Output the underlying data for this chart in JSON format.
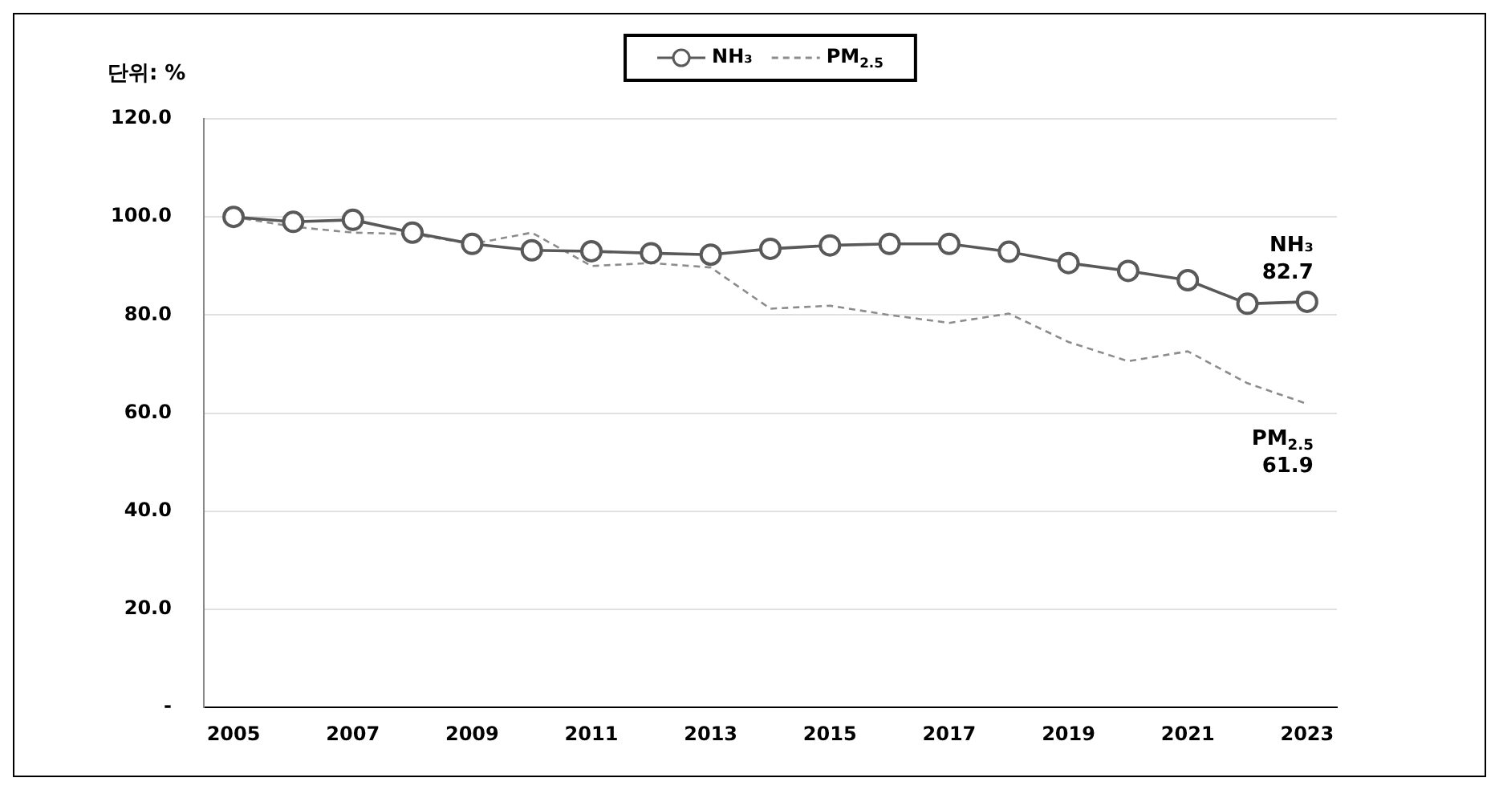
{
  "chart_data": {
    "type": "line",
    "ylabel": "단위: %",
    "categories": [
      "2005",
      null,
      "2007",
      null,
      "2009",
      null,
      "2011",
      null,
      "2013",
      null,
      "2015",
      null,
      "2017",
      null,
      "2019",
      null,
      "2021",
      null,
      "2023"
    ],
    "series": [
      {
        "name": "NH₃",
        "color": "#595959",
        "marker": "circle",
        "line_style": "solid",
        "values": [
          100,
          99,
          99.4,
          96.8,
          94.5,
          93.2,
          93,
          92.6,
          92.3,
          93.5,
          94.2,
          94.5,
          94.5,
          92.9,
          90.6,
          89,
          87.1,
          82.3,
          82.7
        ]
      },
      {
        "name": "PM$_{2.5}$",
        "color": "#8c8c8c",
        "marker": "none",
        "line_style": "dashed",
        "values": [
          100,
          98,
          96.8,
          96.5,
          94.5,
          96.8,
          90,
          90.6,
          89.7,
          81.3,
          81.9,
          80,
          78.4,
          80.3,
          74.5,
          70.6,
          72.6,
          66.1,
          61.9
        ]
      }
    ],
    "ylim": [
      0,
      120
    ],
    "yticks": [
      {
        "value": 0,
        "label": "-"
      },
      {
        "value": 20,
        "label": "20.0"
      },
      {
        "value": 40,
        "label": "40.0"
      },
      {
        "value": 60,
        "label": "60.0"
      },
      {
        "value": 80,
        "label": "80.0"
      },
      {
        "value": 100,
        "label": "100.0"
      },
      {
        "value": 120,
        "label": "120.0"
      }
    ],
    "grid": "y",
    "legend": "top",
    "annotations": [
      {
        "text": "NH₃ 82.7",
        "x": "2023",
        "y": 82.7
      },
      {
        "text": "PM$_{2.5}$ 61.9",
        "x": "2023",
        "y": 61.9
      }
    ]
  }
}
